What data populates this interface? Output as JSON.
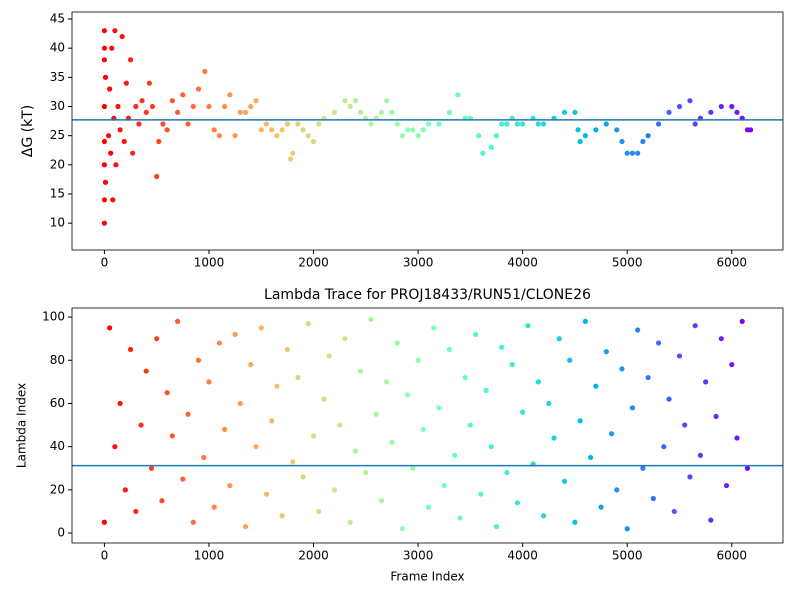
{
  "chart_data": [
    {
      "type": "scatter",
      "y_label": "ΔG (kT)",
      "colormap": "rainbow_r",
      "hline": 27.7,
      "hline_color": "#1f77b4",
      "xlim": [
        -310,
        6490
      ],
      "ylim": [
        5.4,
        46.2
      ],
      "xticks": [
        0,
        1000,
        2000,
        3000,
        4000,
        5000,
        6000
      ],
      "yticks": [
        10,
        15,
        20,
        25,
        30,
        35,
        40,
        45
      ],
      "x": [
        0,
        0,
        0,
        0,
        0,
        0,
        0,
        0,
        10,
        10,
        40,
        50,
        60,
        70,
        80,
        90,
        100,
        110,
        130,
        150,
        170,
        190,
        210,
        230,
        250,
        270,
        300,
        330,
        360,
        400,
        430,
        460,
        500,
        520,
        560,
        600,
        650,
        700,
        750,
        800,
        850,
        900,
        960,
        1000,
        1050,
        1100,
        1150,
        1200,
        1250,
        1300,
        1350,
        1400,
        1450,
        1500,
        1550,
        1600,
        1650,
        1700,
        1750,
        1780,
        1800,
        1850,
        1900,
        1950,
        2000,
        2050,
        2100,
        2200,
        2300,
        2350,
        2400,
        2450,
        2500,
        2550,
        2600,
        2650,
        2700,
        2750,
        2800,
        2850,
        2900,
        2950,
        3000,
        3050,
        3100,
        3200,
        3300,
        3380,
        3450,
        3500,
        3580,
        3620,
        3700,
        3750,
        3800,
        3850,
        3900,
        3950,
        4000,
        4100,
        4150,
        4200,
        4300,
        4400,
        4500,
        4530,
        4550,
        4600,
        4700,
        4800,
        4900,
        4950,
        5000,
        5050,
        5100,
        5150,
        5200,
        5300,
        5400,
        5500,
        5600,
        5650,
        5700,
        5800,
        5900,
        6000,
        6050,
        6100,
        6150,
        6180
      ],
      "values": [
        10,
        20,
        30,
        40,
        43,
        14,
        24,
        38,
        35,
        17,
        25,
        33,
        22,
        40,
        14,
        28,
        43,
        20,
        30,
        26,
        42,
        24,
        34,
        28,
        38,
        22,
        30,
        27,
        31,
        29,
        34,
        30,
        18,
        24,
        27,
        26,
        31,
        29,
        32,
        27,
        30,
        33,
        36,
        30,
        26,
        25,
        30,
        32,
        25,
        29,
        29,
        30,
        31,
        26,
        27,
        26,
        25,
        26,
        27,
        21,
        22,
        27,
        26,
        25,
        24,
        27,
        28,
        29,
        31,
        30,
        31,
        29,
        28,
        27,
        28,
        29,
        31,
        29,
        27,
        25,
        26,
        26,
        25,
        26,
        27,
        27,
        29,
        32,
        28,
        28,
        25,
        22,
        23,
        25,
        27,
        27,
        28,
        27,
        27,
        28,
        27,
        27,
        28,
        29,
        29,
        26,
        24,
        25,
        26,
        27,
        26,
        24,
        22,
        22,
        22,
        24,
        25,
        27,
        29,
        30,
        31,
        27,
        28,
        29,
        30,
        30,
        29,
        28,
        26,
        26
      ]
    },
    {
      "type": "scatter",
      "title": "Lambda Trace for PROJ18433/RUN51/CLONE26",
      "x_label": "Frame Index",
      "y_label": "Lambda Index",
      "colormap": "rainbow_r",
      "hline": 31.2,
      "hline_color": "#1f77b4",
      "xlim": [
        -310,
        6490
      ],
      "ylim": [
        -4.6,
        104.2
      ],
      "xticks": [
        0,
        1000,
        2000,
        3000,
        4000,
        5000,
        6000
      ],
      "yticks": [
        0,
        20,
        40,
        60,
        80,
        100
      ],
      "x": [
        0,
        50,
        100,
        150,
        200,
        250,
        300,
        350,
        400,
        450,
        500,
        550,
        600,
        650,
        700,
        750,
        800,
        850,
        900,
        950,
        1000,
        1050,
        1100,
        1150,
        1200,
        1250,
        1300,
        1350,
        1400,
        1450,
        1500,
        1550,
        1600,
        1650,
        1700,
        1750,
        1800,
        1850,
        1900,
        1950,
        2000,
        2050,
        2100,
        2150,
        2200,
        2250,
        2300,
        2350,
        2400,
        2450,
        2500,
        2550,
        2600,
        2650,
        2700,
        2750,
        2800,
        2850,
        2900,
        2950,
        3000,
        3050,
        3100,
        3150,
        3200,
        3250,
        3300,
        3350,
        3400,
        3450,
        3500,
        3550,
        3600,
        3650,
        3700,
        3750,
        3800,
        3850,
        3900,
        3950,
        4000,
        4050,
        4100,
        4150,
        4200,
        4250,
        4300,
        4350,
        4400,
        4450,
        4500,
        4550,
        4600,
        4650,
        4700,
        4750,
        4800,
        4850,
        4900,
        4950,
        5000,
        5050,
        5100,
        5150,
        5200,
        5250,
        5300,
        5350,
        5400,
        5450,
        5500,
        5550,
        5600,
        5650,
        5700,
        5750,
        5800,
        5850,
        5900,
        5950,
        6000,
        6050,
        6100,
        6150
      ],
      "values": [
        5,
        95,
        40,
        60,
        20,
        85,
        10,
        50,
        75,
        30,
        90,
        15,
        65,
        45,
        98,
        25,
        55,
        5,
        80,
        35,
        70,
        12,
        88,
        48,
        22,
        92,
        60,
        3,
        78,
        40,
        95,
        18,
        52,
        68,
        8,
        85,
        33,
        72,
        26,
        97,
        45,
        10,
        62,
        82,
        20,
        50,
        90,
        5,
        38,
        75,
        28,
        99,
        55,
        15,
        70,
        42,
        88,
        2,
        64,
        30,
        80,
        48,
        12,
        95,
        58,
        22,
        85,
        36,
        7,
        72,
        50,
        92,
        18,
        66,
        40,
        3,
        86,
        28,
        78,
        14,
        56,
        96,
        32,
        70,
        8,
        60,
        44,
        90,
        24,
        80,
        5,
        52,
        98,
        35,
        68,
        12,
        84,
        46,
        20,
        76,
        2,
        58,
        94,
        30,
        72,
        16,
        88,
        40,
        62,
        10,
        82,
        50,
        26,
        96,
        36,
        70,
        6,
        54,
        90,
        22,
        78,
        44,
        98,
        30
      ]
    }
  ]
}
